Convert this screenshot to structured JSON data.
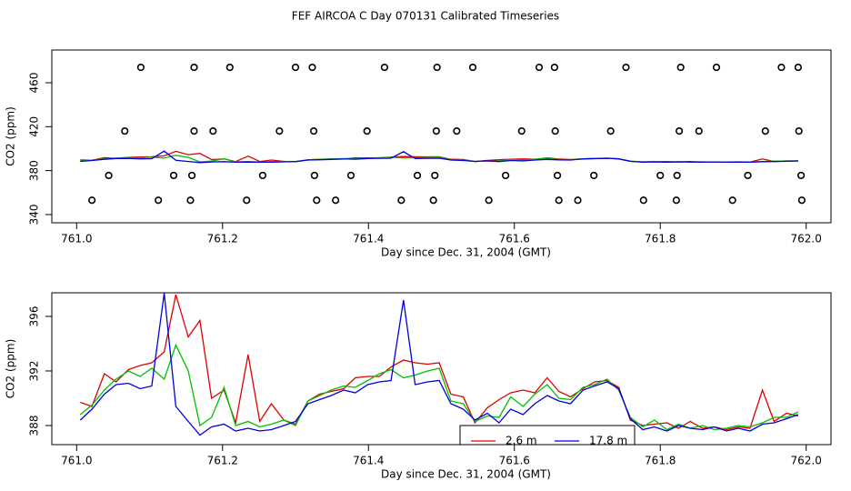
{
  "title": "FEF AIRCOA C  Day 070131  Calibrated Timeseries",
  "chart_data": [
    {
      "type": "scatter",
      "xlabel": "Day since Dec. 31, 2004 (GMT)",
      "ylabel": "CO2 (ppm)",
      "xlim": [
        760.966,
        762.034
      ],
      "ylim": [
        332.5,
        489.8
      ],
      "xticks": [
        {
          "value": 761,
          "label": "761.0"
        },
        761.2,
        761.4,
        761.6,
        761.8,
        {
          "value": 762,
          "label": "762.0"
        }
      ],
      "yticks": [
        340,
        380,
        420,
        460
      ],
      "x": [
        761.088,
        761.161,
        761.21,
        761.3,
        761.323,
        761.422,
        761.494,
        761.543,
        761.634,
        761.655,
        761.753,
        761.828,
        761.877,
        761.966,
        761.989,
        761.066,
        761.161,
        761.187,
        761.278,
        761.325,
        761.398,
        761.493,
        761.521,
        761.61,
        761.656,
        761.732,
        761.826,
        761.853,
        761.944,
        761.99,
        761.044,
        761.158,
        761.133,
        761.255,
        761.326,
        761.376,
        761.467,
        761.491,
        761.588,
        761.659,
        761.709,
        761.8,
        761.823,
        761.92,
        761.993,
        761.021,
        761.112,
        761.156,
        761.233,
        761.329,
        761.355,
        761.445,
        761.489,
        761.565,
        761.661,
        761.687,
        761.777,
        761.822,
        761.899,
        761.994
      ],
      "values": [
        474,
        474,
        474,
        474,
        474,
        474,
        474,
        474,
        474,
        474,
        474,
        474,
        474,
        474,
        474,
        416,
        416,
        416,
        416,
        416,
        416,
        416,
        416,
        416,
        416,
        416,
        416,
        416,
        416,
        416,
        375.6,
        375.6,
        375.6,
        375.6,
        375.6,
        375.6,
        375.6,
        375.6,
        375.6,
        375.6,
        375.6,
        375.6,
        375.6,
        375.6,
        375.6,
        353,
        353,
        353,
        353,
        353,
        353,
        353,
        353,
        353,
        353,
        353,
        353,
        353,
        353,
        353
      ],
      "color": "#000000"
    },
    {
      "type": "line",
      "xlabel": "Day since Dec. 31, 2004 (GMT)",
      "ylabel": "CO2 (ppm)",
      "xlim": [
        760.966,
        762.034
      ],
      "ylim": [
        386.6,
        397.73
      ],
      "xticks": [
        {
          "value": 761,
          "label": "761.0"
        },
        761.2,
        761.4,
        761.6,
        761.8,
        {
          "value": 762,
          "label": "762.0"
        }
      ],
      "yticks": [
        388,
        392,
        396
      ],
      "x": [
        761.005,
        761.021,
        761.038,
        761.054,
        761.071,
        761.087,
        761.103,
        761.12,
        761.136,
        761.153,
        761.169,
        761.185,
        761.202,
        761.218,
        761.235,
        761.251,
        761.267,
        761.284,
        761.3,
        761.317,
        761.333,
        761.349,
        761.366,
        761.382,
        761.399,
        761.415,
        761.431,
        761.448,
        761.464,
        761.481,
        761.497,
        761.513,
        761.53,
        761.546,
        761.563,
        761.579,
        761.595,
        761.612,
        761.628,
        761.645,
        761.661,
        761.677,
        761.694,
        761.71,
        761.727,
        761.743,
        761.759,
        761.776,
        761.792,
        761.809,
        761.825,
        761.841,
        761.858,
        761.874,
        761.891,
        761.907,
        761.923,
        761.94,
        761.956,
        761.973,
        761.989
      ],
      "series": [
        {
          "name": "2.6 m",
          "color": "#e00000",
          "values": [
            389.7,
            389.4,
            391.8,
            391.2,
            392.1,
            392.4,
            392.6,
            393.4,
            397.6,
            394.5,
            395.7,
            390.0,
            390.6,
            388.2,
            393.2,
            388.3,
            389.6,
            388.4,
            388.1,
            389.8,
            390.3,
            390.5,
            390.7,
            391.5,
            391.6,
            391.6,
            392.3,
            392.8,
            392.6,
            392.5,
            392.6,
            390.3,
            390.1,
            388.2,
            389.3,
            389.9,
            390.4,
            390.6,
            390.4,
            391.5,
            390.5,
            390.1,
            390.7,
            391.2,
            391.3,
            390.8,
            388.4,
            388.0,
            388.1,
            388.2,
            387.8,
            388.3,
            387.8,
            387.9,
            387.7,
            387.9,
            387.8,
            390.6,
            388.3,
            388.9,
            388.7
          ]
        },
        {
          "color": "#00c000",
          "values": [
            388.8,
            389.5,
            390.6,
            391.4,
            392.0,
            391.6,
            392.2,
            391.4,
            393.9,
            392.0,
            388.0,
            388.6,
            390.8,
            388.0,
            388.3,
            387.9,
            388.1,
            388.4,
            388.0,
            389.8,
            390.2,
            390.6,
            390.9,
            390.8,
            391.3,
            391.8,
            392.1,
            391.5,
            391.7,
            392.0,
            392.2,
            389.8,
            389.6,
            388.3,
            388.7,
            388.6,
            390.1,
            389.4,
            390.3,
            391.0,
            390.0,
            389.9,
            390.8,
            391.0,
            391.4,
            390.6,
            388.6,
            387.9,
            388.4,
            387.7,
            388.1,
            387.8,
            388.0,
            387.7,
            387.8,
            388.0,
            387.9,
            388.2,
            388.6,
            388.6,
            389.0
          ]
        },
        {
          "name": "17.8 m",
          "color": "#0000e0",
          "values": [
            388.4,
            389.2,
            390.3,
            391.0,
            391.1,
            390.7,
            390.9,
            397.7,
            389.4,
            388.3,
            387.3,
            387.9,
            388.1,
            387.6,
            387.8,
            387.6,
            387.7,
            388.0,
            388.3,
            389.6,
            389.9,
            390.2,
            390.6,
            390.4,
            391.0,
            391.2,
            391.3,
            397.2,
            391.0,
            391.2,
            391.3,
            389.6,
            389.2,
            388.4,
            388.9,
            388.2,
            389.2,
            388.8,
            389.6,
            390.2,
            389.8,
            389.6,
            390.6,
            390.9,
            391.2,
            390.7,
            388.5,
            387.7,
            387.9,
            387.6,
            388.0,
            387.8,
            387.7,
            387.9,
            387.6,
            387.8,
            387.6,
            388.1,
            388.2,
            388.5,
            388.8
          ]
        }
      ]
    }
  ]
}
